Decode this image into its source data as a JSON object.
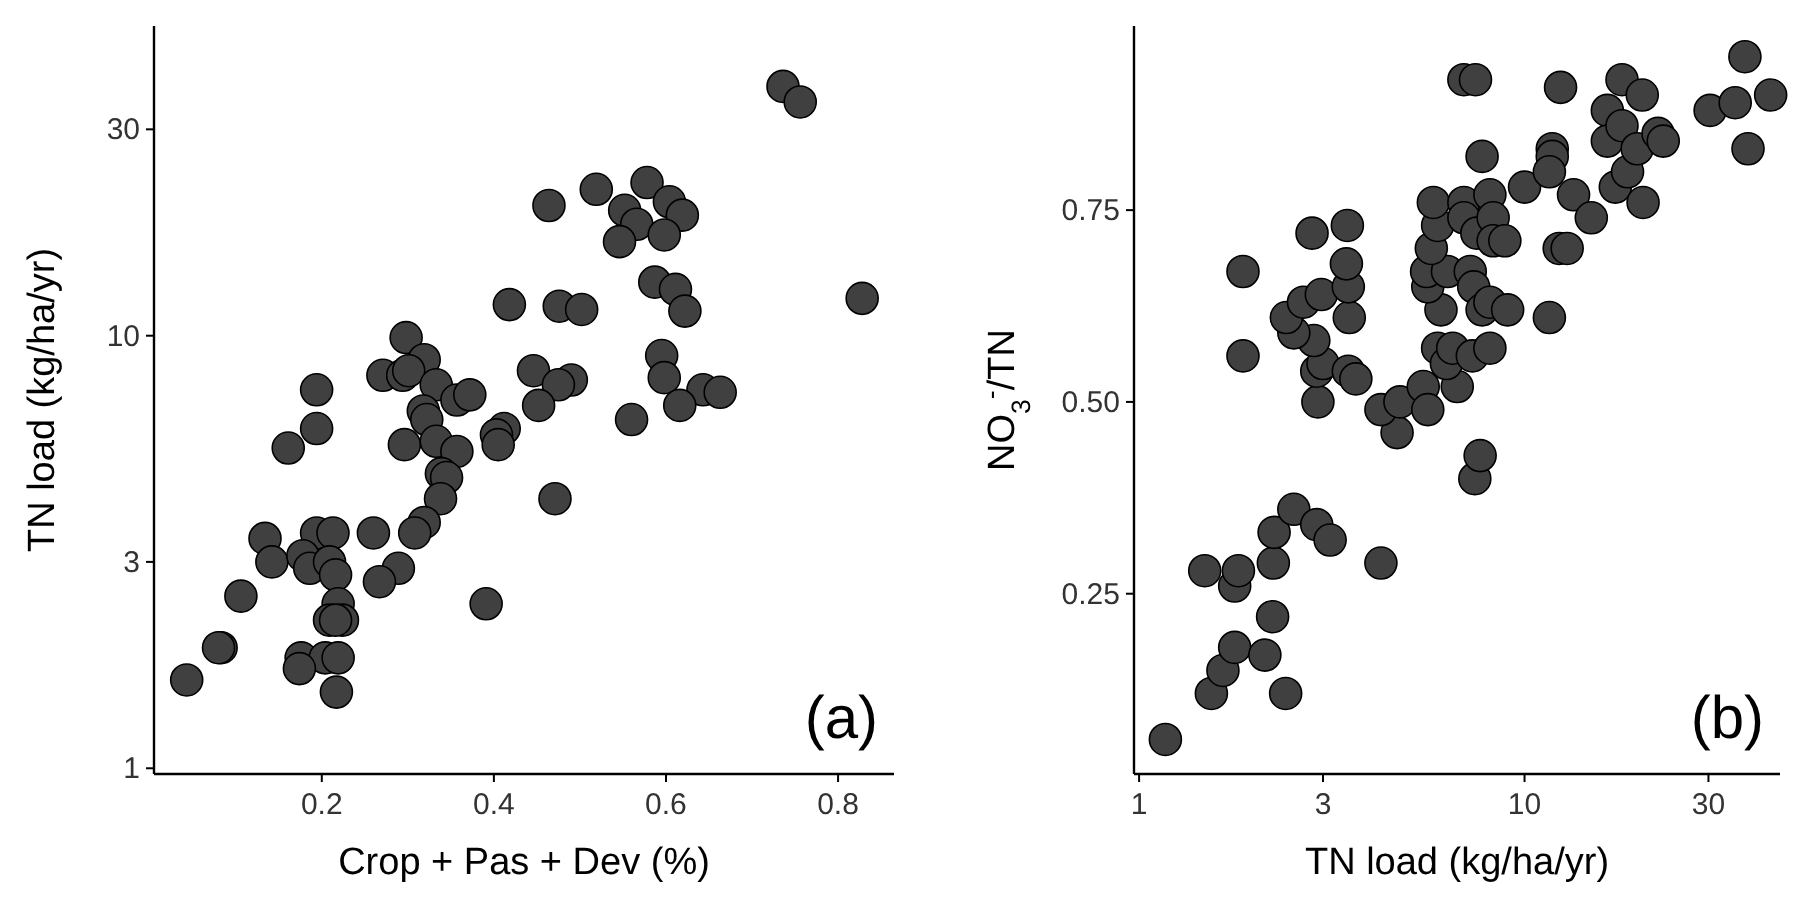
{
  "chart_data": [
    {
      "type": "scatter",
      "xlabel": "Crop + Pas + Dev (%)",
      "ylabel": "TN load (kg/ha/yr)",
      "log": "y",
      "grid": false,
      "marker": "circle",
      "xlim": [
        0.005,
        0.865
      ],
      "ylim": [
        0.97,
        52
      ],
      "xticks": [
        0.2,
        0.4,
        0.6,
        0.8
      ],
      "yticks": [
        1,
        3,
        10,
        30
      ],
      "annotations": [
        "(a)"
      ],
      "series": [
        {
          "color": "#404040",
          "x": [
            0.736,
            0.756,
            0.828,
            0.519,
            0.578,
            0.464,
            0.552,
            0.604,
            0.619,
            0.566,
            0.546,
            0.598,
            0.587,
            0.611,
            0.622,
            0.418,
            0.476,
            0.502,
            0.298,
            0.595,
            0.598,
            0.319,
            0.271,
            0.294,
            0.301,
            0.333,
            0.194,
            0.446,
            0.49,
            0.475,
            0.357,
            0.372,
            0.643,
            0.663,
            0.452,
            0.616,
            0.318,
            0.322,
            0.56,
            0.194,
            0.412,
            0.403,
            0.405,
            0.161,
            0.296,
            0.333,
            0.357,
            0.339,
            0.345,
            0.338,
            0.471,
            0.319,
            0.308,
            0.134,
            0.194,
            0.213,
            0.26,
            0.142,
            0.178,
            0.186,
            0.209,
            0.216,
            0.289,
            0.267,
            0.106,
            0.391,
            0.219,
            0.209,
            0.224,
            0.216,
            0.083,
            0.08,
            0.176,
            0.204,
            0.219,
            0.174,
            0.043,
            0.217
          ],
          "values": [
            37.7,
            34.7,
            12.2,
            21.8,
            22.6,
            20,
            19.5,
            20.4,
            19,
            18.1,
            16.5,
            17.1,
            13.3,
            12.8,
            11.4,
            11.8,
            11.7,
            11.5,
            9.9,
            9,
            8,
            8.8,
            8.1,
            8.1,
            8.3,
            7.7,
            7.5,
            8.3,
            7.9,
            7.7,
            7.1,
            7.3,
            7.5,
            7.4,
            6.9,
            6.9,
            6.7,
            6.4,
            6.4,
            6.1,
            6.1,
            5.9,
            5.6,
            5.5,
            5.6,
            5.7,
            5.4,
            4.8,
            4.7,
            4.2,
            4.2,
            3.7,
            3.5,
            3.4,
            3.5,
            3.5,
            3.5,
            3,
            3.1,
            2.9,
            3,
            2.8,
            2.9,
            2.7,
            2.5,
            2.4,
            2.4,
            2.2,
            2.2,
            2.2,
            1.9,
            1.9,
            1.8,
            1.8,
            1.8,
            1.7,
            1.6,
            1.5
          ]
        }
      ]
    },
    {
      "type": "scatter",
      "xlabel": "TN load (kg/ha/yr)",
      "ylabel": "NO$_{3}$$^{-}$/TN",
      "log": "x",
      "grid": false,
      "marker": "circle",
      "xlim": [
        0.97,
        46
      ],
      "ylim": [
        0.015,
        0.99
      ],
      "xticks": [
        1,
        3,
        10,
        30
      ],
      "yticks": [
        {
          "value": 0.25,
          "label": "0.25"
        },
        {
          "value": 0.5,
          "label": "0.50"
        },
        {
          "value": 0.75,
          "label": "0.75"
        }
      ],
      "annotations": [
        "(b)"
      ],
      "series": [
        {
          "color": "#404040",
          "x": [
            1.17,
            1.54,
            1.65,
            1.77,
            2.12,
            2.4,
            2.22,
            1.48,
            1.77,
            1.81,
            2.23,
            2.24,
            2.52,
            2.89,
            3.13,
            4.24,
            7.43,
            7.67,
            4.67,
            4.24,
            4.75,
            5.46,
            5.61,
            6.69,
            2.91,
            2.89,
            3,
            3.49,
            3.65,
            2.84,
            2.52,
            2.41,
            1.86,
            1.86,
            2.67,
            2.97,
            3.51,
            3.49,
            3.45,
            2.81,
            3.47,
            5.95,
            6.27,
            6.51,
            7.32,
            8.13,
            6.07,
            5.61,
            5.57,
            6.31,
            7.23,
            7.38,
            7.76,
            8.13,
            9.04,
            5.73,
            5.95,
            5.8,
            6.96,
            6.96,
            7.52,
            8.13,
            8.29,
            8.29,
            8.89,
            7.76,
            6.96,
            7.46,
            10,
            11.6,
            11.8,
            11.8,
            11.6,
            12.4,
            12.3,
            12.9,
            13.4,
            14.9,
            16.4,
            16.4,
            17.2,
            17.9,
            17.9,
            18.5,
            19.6,
            20.2,
            20.3,
            22.2,
            22.9,
            30.3,
            35.2,
            37.3,
            38,
            43.5
          ],
          "values": [
            0.06,
            0.12,
            0.15,
            0.18,
            0.17,
            0.12,
            0.22,
            0.28,
            0.26,
            0.28,
            0.29,
            0.33,
            0.36,
            0.34,
            0.32,
            0.29,
            0.4,
            0.43,
            0.46,
            0.49,
            0.5,
            0.52,
            0.49,
            0.52,
            0.5,
            0.54,
            0.55,
            0.54,
            0.53,
            0.58,
            0.59,
            0.61,
            0.56,
            0.67,
            0.63,
            0.64,
            0.61,
            0.65,
            0.68,
            0.72,
            0.73,
            0.57,
            0.55,
            0.57,
            0.56,
            0.57,
            0.62,
            0.65,
            0.67,
            0.67,
            0.67,
            0.65,
            0.62,
            0.63,
            0.62,
            0.7,
            0.73,
            0.76,
            0.76,
            0.74,
            0.72,
            0.77,
            0.74,
            0.71,
            0.71,
            0.82,
            0.92,
            0.92,
            0.78,
            0.61,
            0.83,
            0.82,
            0.8,
            0.91,
            0.7,
            0.7,
            0.77,
            0.74,
            0.88,
            0.84,
            0.78,
            0.92,
            0.86,
            0.8,
            0.83,
            0.9,
            0.76,
            0.85,
            0.84,
            0.88,
            0.89,
            0.95,
            0.83,
            0.9
          ]
        }
      ]
    }
  ]
}
